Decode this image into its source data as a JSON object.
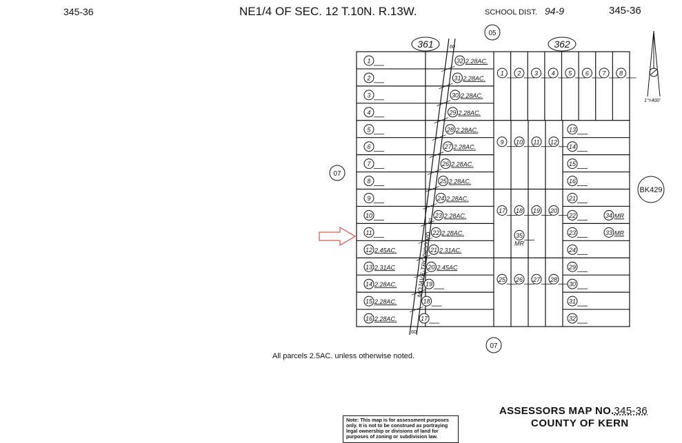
{
  "header": {
    "map_no_left": "345-36",
    "title": "NE1/4 OF SEC. 12 T.10N. R.13W.",
    "school_dist_label": "SCHOOL DIST.",
    "school_dist": "94-9",
    "map_no_right": "345-36"
  },
  "blocks": {
    "left": "361",
    "right": "362"
  },
  "adjacent": {
    "top": "05",
    "left": "07",
    "bottom": "07",
    "book": "BK429"
  },
  "road": {
    "name": "MOJAVE-TROPICO RD",
    "width_top": "60",
    "width_mid": "80",
    "width_bottom": "60"
  },
  "scale": "1\"=400'",
  "block361": {
    "west_lots": [
      {
        "n": "1",
        "ac": ""
      },
      {
        "n": "2",
        "ac": ""
      },
      {
        "n": "3",
        "ac": ""
      },
      {
        "n": "4",
        "ac": ""
      },
      {
        "n": "5",
        "ac": ""
      },
      {
        "n": "6",
        "ac": ""
      },
      {
        "n": "7",
        "ac": ""
      },
      {
        "n": "8",
        "ac": ""
      },
      {
        "n": "9",
        "ac": ""
      },
      {
        "n": "10",
        "ac": ""
      },
      {
        "n": "11",
        "ac": ""
      },
      {
        "n": "12",
        "ac": "2.45AC."
      },
      {
        "n": "13",
        "ac": "2.31AC"
      },
      {
        "n": "14",
        "ac": "2.28AC."
      },
      {
        "n": "15",
        "ac": "2.28AC."
      },
      {
        "n": "16",
        "ac": "2.28AC."
      }
    ],
    "east_lots": [
      {
        "n": "32",
        "ac": "2.28AC."
      },
      {
        "n": "31",
        "ac": "2.28AC."
      },
      {
        "n": "30",
        "ac": "2.28AC."
      },
      {
        "n": "29",
        "ac": "2.28AC."
      },
      {
        "n": "28",
        "ac": "2.28AC."
      },
      {
        "n": "27",
        "ac": "2.28AC."
      },
      {
        "n": "26",
        "ac": "2.28AC."
      },
      {
        "n": "25",
        "ac": "2.28AC."
      },
      {
        "n": "24",
        "ac": "2.28AC."
      },
      {
        "n": "23",
        "ac": "2.28AC."
      },
      {
        "n": "22",
        "ac": "2.28AC."
      },
      {
        "n": "21",
        "ac": "2.31AC."
      },
      {
        "n": "20",
        "ac": "2.45AC"
      },
      {
        "n": "19",
        "ac": ""
      },
      {
        "n": "18",
        "ac": ""
      },
      {
        "n": "17",
        "ac": ""
      }
    ],
    "highlighted_lot": "11"
  },
  "block362": {
    "top_row": [
      "1",
      "2",
      "3",
      "4",
      "5",
      "6",
      "7",
      "8"
    ],
    "col_groups": [
      [
        "9",
        "10",
        "11",
        "12"
      ],
      [
        "17",
        "18",
        "19",
        "20"
      ],
      [
        "25",
        "26",
        "27",
        "28"
      ]
    ],
    "row_groups": [
      [
        "13",
        "14",
        "15",
        "16"
      ],
      [
        "21",
        "22",
        "23",
        "24"
      ],
      [
        "29",
        "30",
        "31",
        "32"
      ]
    ],
    "mr_lots": [
      {
        "n": "34",
        "ac": "MR"
      },
      {
        "n": "33",
        "ac": "MR"
      },
      {
        "n": "35",
        "ac": "MR"
      }
    ]
  },
  "footer": {
    "parcels_note": "All parcels 2.5AC. unless otherwise noted.",
    "disclaimer": "Note: This map is for assessment purposes only. It is not to be construed as portraying legal ownership or divisions of land for purposes of zoning or subdivision law.",
    "assessors_label": "ASSESSORS MAP NO.",
    "assessors_no": "345-36",
    "county": "COUNTY OF KERN"
  },
  "colors": {
    "ink": "#111111",
    "arrow": "#d9534f"
  }
}
